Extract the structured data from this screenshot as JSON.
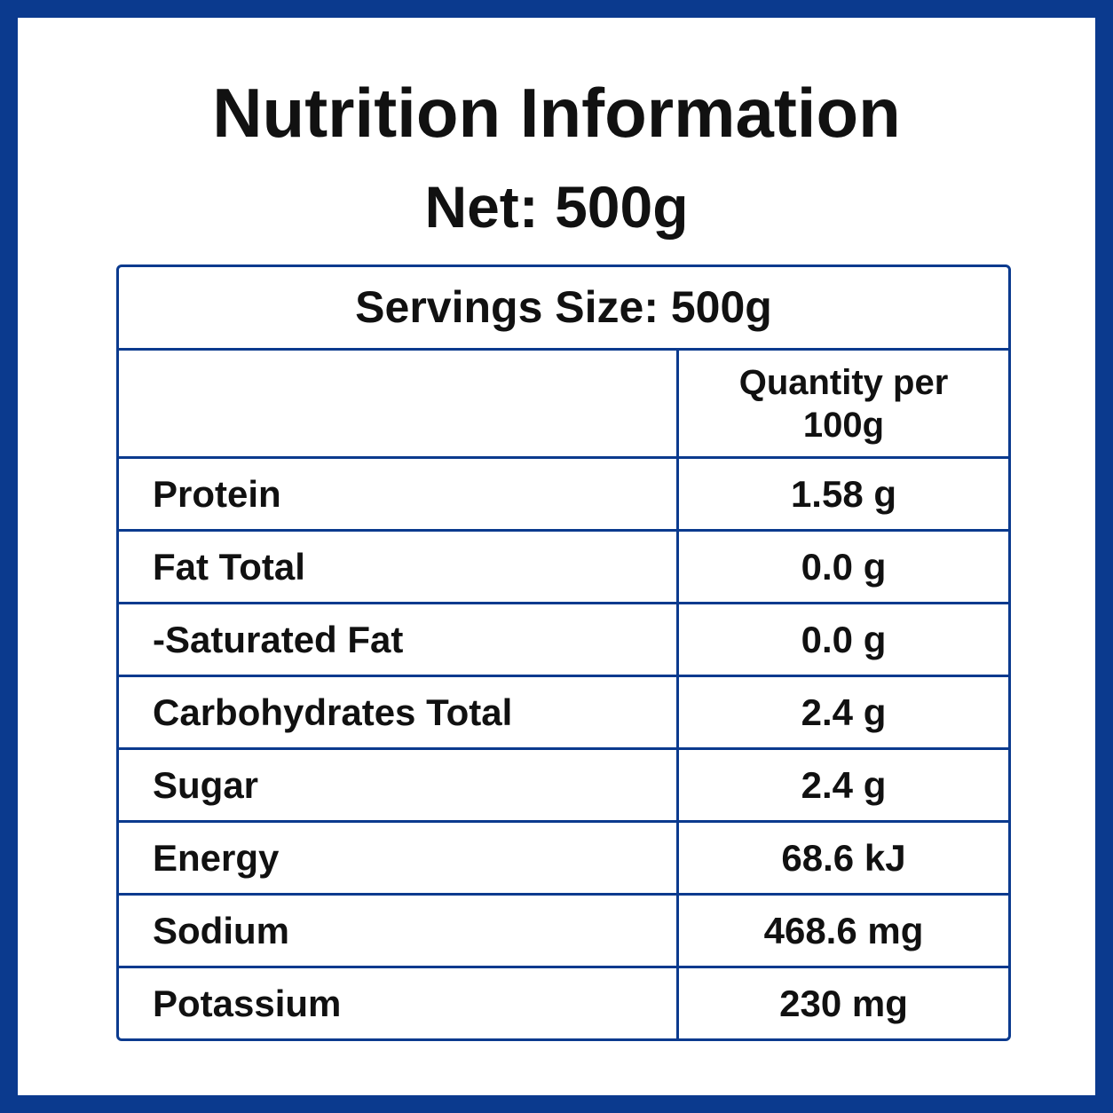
{
  "header": {
    "title": "Nutrition Information",
    "net": "Net: 500g"
  },
  "table": {
    "serving_size": "Servings Size: 500g",
    "column_header": "Quantity per 100g",
    "rows": [
      [
        "Protein",
        "1.58 g"
      ],
      [
        "Fat Total",
        "0.0 g"
      ],
      [
        "-Saturated Fat",
        "0.0 g"
      ],
      [
        "Carbohydrates Total",
        "2.4 g"
      ],
      [
        "Sugar",
        "2.4 g"
      ],
      [
        "Energy",
        "68.6 kJ"
      ],
      [
        "Sodium",
        "468.6 mg"
      ],
      [
        "Potassium",
        "230 mg"
      ]
    ]
  }
}
